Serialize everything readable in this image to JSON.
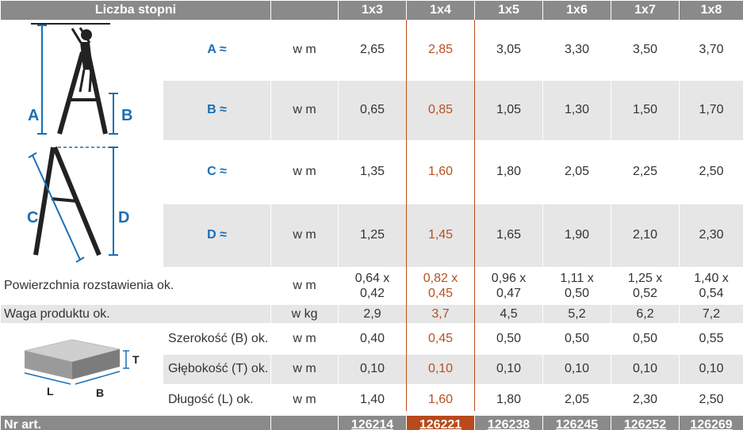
{
  "header": {
    "title": "Liczba stopni",
    "columns": [
      "1x3",
      "1x4",
      "1x5",
      "1x6",
      "1x7",
      "1x8"
    ]
  },
  "illustration": {
    "ladder_labels": [
      "A",
      "B",
      "C",
      "D"
    ],
    "box_labels": [
      "T",
      "L",
      "B"
    ]
  },
  "rows": [
    {
      "label": "A ≈",
      "unit": "w m",
      "values": [
        "2,65",
        "2,85",
        "3,05",
        "3,30",
        "3,50",
        "3,70"
      ]
    },
    {
      "label": "B ≈",
      "unit": "w m",
      "values": [
        "0,65",
        "0,85",
        "1,05",
        "1,30",
        "1,50",
        "1,70"
      ]
    },
    {
      "label": "C ≈",
      "unit": "w m",
      "values": [
        "1,35",
        "1,60",
        "1,80",
        "2,05",
        "2,25",
        "2,50"
      ]
    },
    {
      "label": "D ≈",
      "unit": "w m",
      "values": [
        "1,25",
        "1,45",
        "1,65",
        "1,90",
        "2,10",
        "2,30"
      ]
    }
  ],
  "area": {
    "label": "Powierzchnia rozstawienia ok.",
    "unit": "w m",
    "values": [
      [
        "0,64 x",
        "0,42"
      ],
      [
        "0,82 x",
        "0,45"
      ],
      [
        "0,96 x",
        "0,47"
      ],
      [
        "1,11 x",
        "0,50"
      ],
      [
        "1,25 x",
        "0,52"
      ],
      [
        "1,40 x",
        "0,54"
      ]
    ]
  },
  "weight": {
    "label": "Waga produktu ok.",
    "unit": "w kg",
    "values": [
      "2,9",
      "3,7",
      "4,5",
      "5,2",
      "6,2",
      "7,2"
    ]
  },
  "package": [
    {
      "label": "Szerokość (B) ok.",
      "unit": "w m",
      "values": [
        "0,40",
        "0,45",
        "0,50",
        "0,50",
        "0,50",
        "0,55"
      ]
    },
    {
      "label": "Głębokość (T) ok.",
      "unit": "w m",
      "values": [
        "0,10",
        "0,10",
        "0,10",
        "0,10",
        "0,10",
        "0,10"
      ]
    },
    {
      "label": "Długość (L) ok.",
      "unit": "w m",
      "values": [
        "1,40",
        "1,60",
        "1,80",
        "2,05",
        "2,30",
        "2,50"
      ]
    }
  ],
  "footer": {
    "label": "Nr art.",
    "articles": [
      "126214",
      "126221",
      "126238",
      "126245",
      "126252",
      "126269"
    ]
  },
  "colors": {
    "header_bg": "#8a8a8a",
    "shade": "#e6e6e6",
    "highlight": "#b6501e",
    "letter_blue": "#1a6fb5"
  }
}
